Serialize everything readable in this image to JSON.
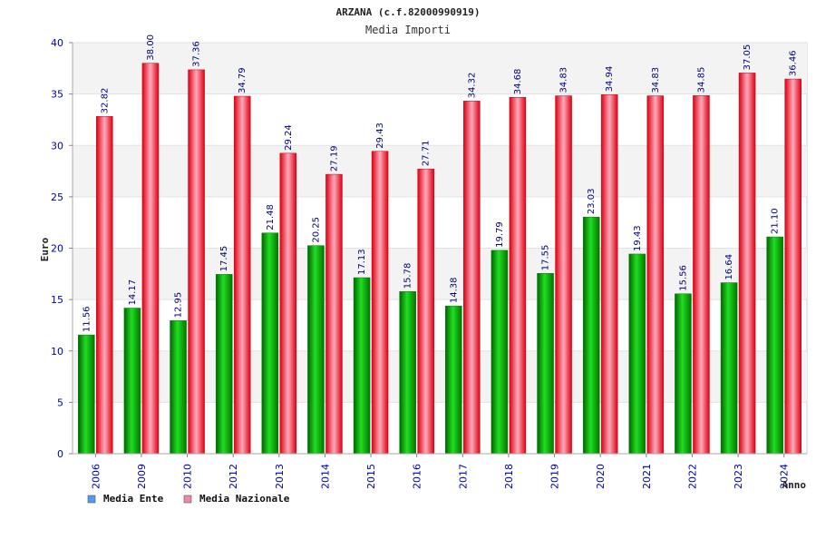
{
  "chart_data": {
    "type": "bar",
    "title": "ARZANA (c.f.82000990919)",
    "subtitle": "Media Importi",
    "xlabel": "Anno",
    "ylabel": "Euro",
    "ylim": [
      0,
      40
    ],
    "yticks": [
      0,
      5,
      10,
      15,
      20,
      25,
      30,
      35,
      40
    ],
    "grid": true,
    "legend_position": "bottom-left",
    "categories": [
      "2006",
      "2009",
      "2010",
      "2012",
      "2013",
      "2014",
      "2015",
      "2016",
      "2017",
      "2018",
      "2019",
      "2020",
      "2021",
      "2022",
      "2023",
      "2024"
    ],
    "series": [
      {
        "name": "Media Ente",
        "color": "#00aa00",
        "legend_color": "#5599ee",
        "values": [
          11.56,
          14.17,
          12.95,
          17.45,
          21.48,
          20.25,
          17.13,
          15.78,
          14.38,
          19.79,
          17.55,
          23.03,
          19.43,
          15.56,
          16.64,
          21.1
        ],
        "labels": [
          "11.56",
          "14.17",
          "12.95",
          "17.45",
          "21.48",
          "20.25",
          "17.13",
          "15.78",
          "14.38",
          "19.79",
          "17.55",
          "23.03",
          "19.43",
          "15.56",
          "16.64",
          "21.10"
        ]
      },
      {
        "name": "Media Nazionale",
        "color": "#ee1122",
        "legend_color": "#ee88aa",
        "values": [
          32.82,
          38.0,
          37.36,
          34.79,
          29.24,
          27.19,
          29.43,
          27.71,
          34.32,
          34.68,
          34.83,
          34.94,
          34.83,
          34.85,
          37.05,
          36.46
        ],
        "labels": [
          "32.82",
          "38.00",
          "37.36",
          "34.79",
          "29.24",
          "27.19",
          "29.43",
          "27.71",
          "34.32",
          "34.68",
          "34.83",
          "34.94",
          "34.83",
          "34.85",
          "37.05",
          "36.46"
        ]
      }
    ]
  }
}
